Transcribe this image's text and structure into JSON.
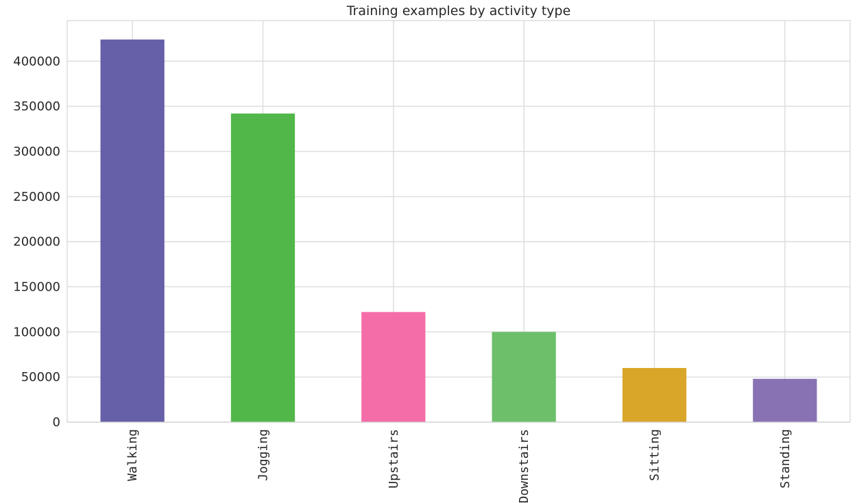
{
  "chart_data": {
    "type": "bar",
    "title": "Training examples by activity type",
    "xlabel": "",
    "ylabel": "",
    "categories": [
      "Walking",
      "Jogging",
      "Upstairs",
      "Downstairs",
      "Sitting",
      "Standing"
    ],
    "values": [
      424000,
      342000,
      122000,
      100000,
      60000,
      48000
    ],
    "colors": [
      "#6560a8",
      "#52b749",
      "#f46ca8",
      "#6dbf6a",
      "#d9a62a",
      "#8872b3"
    ],
    "yticks": [
      0,
      50000,
      100000,
      150000,
      200000,
      250000,
      300000,
      350000,
      400000
    ],
    "ylim": [
      0,
      445000
    ],
    "grid": true,
    "legend": "none"
  }
}
